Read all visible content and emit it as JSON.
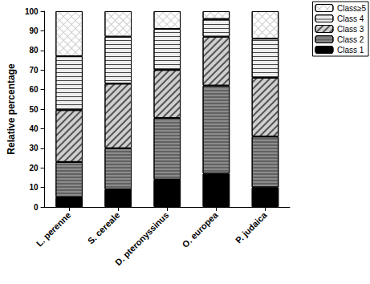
{
  "chart_data": {
    "type": "bar",
    "stacked": true,
    "y_label": "Relative percentage",
    "categories": [
      "L. perenne",
      "S. cereale",
      "D. pteronyssinus",
      "O. europea",
      "P. judaica"
    ],
    "series": [
      {
        "name": "Class 1",
        "color": "#000000",
        "values": [
          5,
          9,
          14,
          17,
          10
        ]
      },
      {
        "name": "Class 2",
        "color": "#8c8c8c",
        "values": [
          18,
          21,
          31.5,
          45,
          26
        ]
      },
      {
        "name": "Class 3",
        "color": "#cfcfcf",
        "values": [
          26.5,
          33,
          24.5,
          25,
          30
        ]
      },
      {
        "name": "Class 4",
        "color": "#ececec",
        "values": [
          27.5,
          24,
          21,
          9,
          20
        ]
      },
      {
        "name": "Class≥5",
        "color": "#ffffff",
        "values": [
          23,
          13,
          9,
          4,
          14
        ]
      }
    ],
    "ylim": [
      0,
      100
    ],
    "yticks": [
      0,
      10,
      20,
      30,
      40,
      50,
      60,
      70,
      80,
      90,
      100
    ],
    "legend": "top-right",
    "grid": false
  }
}
